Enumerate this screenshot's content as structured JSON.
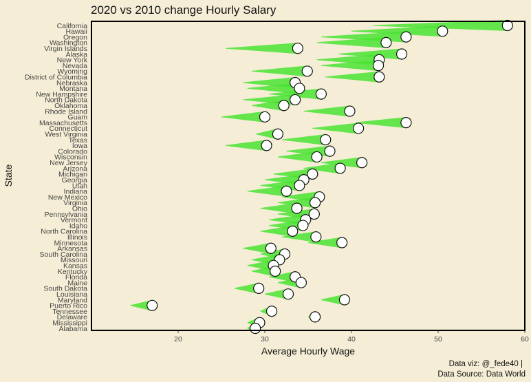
{
  "chart_data": {
    "type": "scatter",
    "title": "2020 vs 2010 change Hourly Salary",
    "xlabel": "Average Hourly Wage",
    "ylabel": "State",
    "xlim": [
      10,
      60
    ],
    "xticks": [
      20,
      30,
      40,
      50,
      60
    ],
    "grid": false,
    "caption": [
      "Data viz: @_fede40 |",
      "Data Source: Data World"
    ],
    "colors": {
      "background": "#f5edd6",
      "trail": "#49e332",
      "point_fill": "#ffffff",
      "point_stroke": "#111111",
      "frame": "#000000"
    },
    "series": [
      {
        "name": "2010",
        "mark": "trail start"
      },
      {
        "name": "2020",
        "mark": "circle"
      }
    ],
    "states": [
      {
        "state": "California",
        "v2010": 42.5,
        "v2020": 58.0
      },
      {
        "state": "Hawaii",
        "v2010": 40.0,
        "v2020": 50.5
      },
      {
        "state": "Oregon",
        "v2010": 36.5,
        "v2020": 46.3
      },
      {
        "state": "Washington",
        "v2010": 36.0,
        "v2020": 44.0
      },
      {
        "state": "Virgin Islands",
        "v2010": 25.5,
        "v2020": 33.8
      },
      {
        "state": "Alaska",
        "v2010": 38.5,
        "v2020": 45.8
      },
      {
        "state": "New York",
        "v2010": 36.0,
        "v2020": 43.2
      },
      {
        "state": "Nevada",
        "v2010": 36.5,
        "v2020": 43.1
      },
      {
        "state": "Wyoming",
        "v2010": 28.5,
        "v2020": 34.9
      },
      {
        "state": "District of Columbia",
        "v2010": 37.0,
        "v2020": 43.2
      },
      {
        "state": "Nebraska",
        "v2010": 27.5,
        "v2020": 33.5
      },
      {
        "state": "Montana",
        "v2010": 28.0,
        "v2020": 34.0
      },
      {
        "state": "New Hampshire",
        "v2010": 30.5,
        "v2020": 36.5
      },
      {
        "state": "North Dakota",
        "v2010": 27.5,
        "v2020": 33.5
      },
      {
        "state": "Oklahoma",
        "v2010": 28.5,
        "v2020": 32.2
      },
      {
        "state": "Rhode Island",
        "v2010": 34.5,
        "v2020": 39.8
      },
      {
        "state": "Guam",
        "v2010": 25.0,
        "v2020": 30.0
      },
      {
        "state": "Massachusetts",
        "v2010": 40.5,
        "v2020": 46.3
      },
      {
        "state": "Connecticut",
        "v2010": 35.5,
        "v2020": 40.8
      },
      {
        "state": "West Virginia",
        "v2010": 29.0,
        "v2020": 31.5
      },
      {
        "state": "Texas",
        "v2010": 32.0,
        "v2020": 37.0
      },
      {
        "state": "Iowa",
        "v2010": 25.5,
        "v2020": 30.2
      },
      {
        "state": "Colorado",
        "v2010": 32.5,
        "v2020": 37.5
      },
      {
        "state": "Wisconsin",
        "v2010": 31.5,
        "v2020": 36.0
      },
      {
        "state": "New Jersey",
        "v2010": 36.5,
        "v2020": 41.2
      },
      {
        "state": "Arizona",
        "v2010": 34.5,
        "v2020": 38.7
      },
      {
        "state": "Michigan",
        "v2010": 31.0,
        "v2020": 35.5
      },
      {
        "state": "Georgia",
        "v2010": 30.0,
        "v2020": 34.5
      },
      {
        "state": "Utah",
        "v2010": 29.5,
        "v2020": 34.0
      },
      {
        "state": "Indiana",
        "v2010": 28.0,
        "v2020": 32.5
      },
      {
        "state": "New Mexico",
        "v2010": 32.0,
        "v2020": 36.3
      },
      {
        "state": "Virginia",
        "v2010": 31.5,
        "v2020": 35.8
      },
      {
        "state": "Ohio",
        "v2010": 29.5,
        "v2020": 33.7
      },
      {
        "state": "Pennsylvania",
        "v2010": 31.5,
        "v2020": 35.7
      },
      {
        "state": "Vermont",
        "v2010": 30.5,
        "v2020": 34.7
      },
      {
        "state": "Idaho",
        "v2010": 30.5,
        "v2020": 34.4
      },
      {
        "state": "North Carolina",
        "v2010": 29.5,
        "v2020": 33.2
      },
      {
        "state": "Illinois",
        "v2010": 32.0,
        "v2020": 35.9
      },
      {
        "state": "Minnesota",
        "v2010": 35.0,
        "v2020": 38.9
      },
      {
        "state": "Arkansas",
        "v2010": 27.5,
        "v2020": 30.7
      },
      {
        "state": "South Carolina",
        "v2010": 29.5,
        "v2020": 32.3
      },
      {
        "state": "Missouri",
        "v2010": 28.5,
        "v2020": 31.7
      },
      {
        "state": "Kansas",
        "v2010": 28.0,
        "v2020": 31.0
      },
      {
        "state": "Kentucky",
        "v2010": 28.5,
        "v2020": 31.2
      },
      {
        "state": "Florida",
        "v2010": 30.5,
        "v2020": 33.5
      },
      {
        "state": "Maine",
        "v2010": 31.5,
        "v2020": 34.2
      },
      {
        "state": "South Dakota",
        "v2010": 26.5,
        "v2020": 29.3
      },
      {
        "state": "Louisiana",
        "v2010": 30.0,
        "v2020": 32.7
      },
      {
        "state": "Maryland",
        "v2010": 36.5,
        "v2020": 39.2
      },
      {
        "state": "Puerto Rico",
        "v2010": 14.5,
        "v2020": 17.0
      },
      {
        "state": "Tennessee",
        "v2010": 29.5,
        "v2020": 30.8
      },
      {
        "state": "Delaware",
        "v2010": 35.0,
        "v2020": 35.8
      },
      {
        "state": "Mississippi",
        "v2010": 28.0,
        "v2020": 29.4
      },
      {
        "state": "Alabama",
        "v2010": 28.0,
        "v2020": 28.9
      }
    ]
  }
}
